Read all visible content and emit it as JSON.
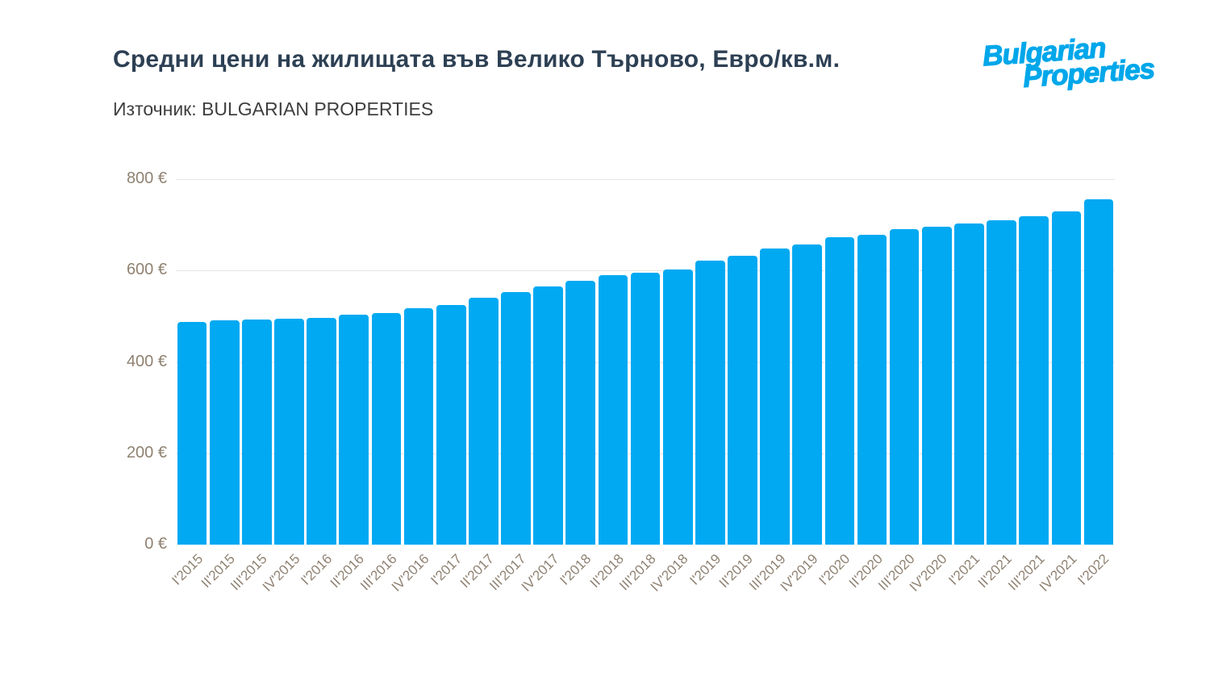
{
  "header": {
    "title": "Средни цени на жилищата във Велико Търново, Евро/кв.м.",
    "source": "Източник: BULGARIAN PROPERTIES",
    "logo": {
      "line1": "Bulgarian",
      "line2": "Properties",
      "color": "#00a7ea"
    }
  },
  "chart_data": {
    "type": "bar",
    "title": "Средни цени на жилищата във Велико Търново, Евро/кв.м.",
    "subtitle": "Източник: BULGARIAN PROPERTIES",
    "categories": [
      "I'2015",
      "II'2015",
      "III'2015",
      "IV'2015",
      "I'2016",
      "II'2016",
      "III'2016",
      "IV'2016",
      "I'2017",
      "II'2017",
      "III'2017",
      "IV'2017",
      "I'2018",
      "II'2018",
      "III'2018",
      "IV'2018",
      "I'2019",
      "II'2019",
      "III'2019",
      "IV'2019",
      "I'2020",
      "II'2020",
      "III'2020",
      "IV'2020",
      "I'2021",
      "II'2021",
      "III'2021",
      "IV'2021",
      "I'2022"
    ],
    "values": [
      488,
      491,
      493,
      494,
      497,
      504,
      507,
      517,
      525,
      541,
      553,
      565,
      577,
      590,
      596,
      603,
      622,
      632,
      648,
      657,
      672,
      678,
      690,
      696,
      703,
      710,
      718,
      730,
      756
    ],
    "unit": "€/кв.м.",
    "xlabel": "",
    "ylabel": "",
    "ylim": [
      0,
      800
    ],
    "yticks": [
      0,
      200,
      400,
      600,
      800
    ],
    "ytick_suffix": " €",
    "grid": true,
    "legend": "none",
    "bar_color": "#00a9f2",
    "axis_label_color": "#8f8272",
    "gridline_color": "#e7e4e0",
    "title_color": "#2d4054"
  }
}
